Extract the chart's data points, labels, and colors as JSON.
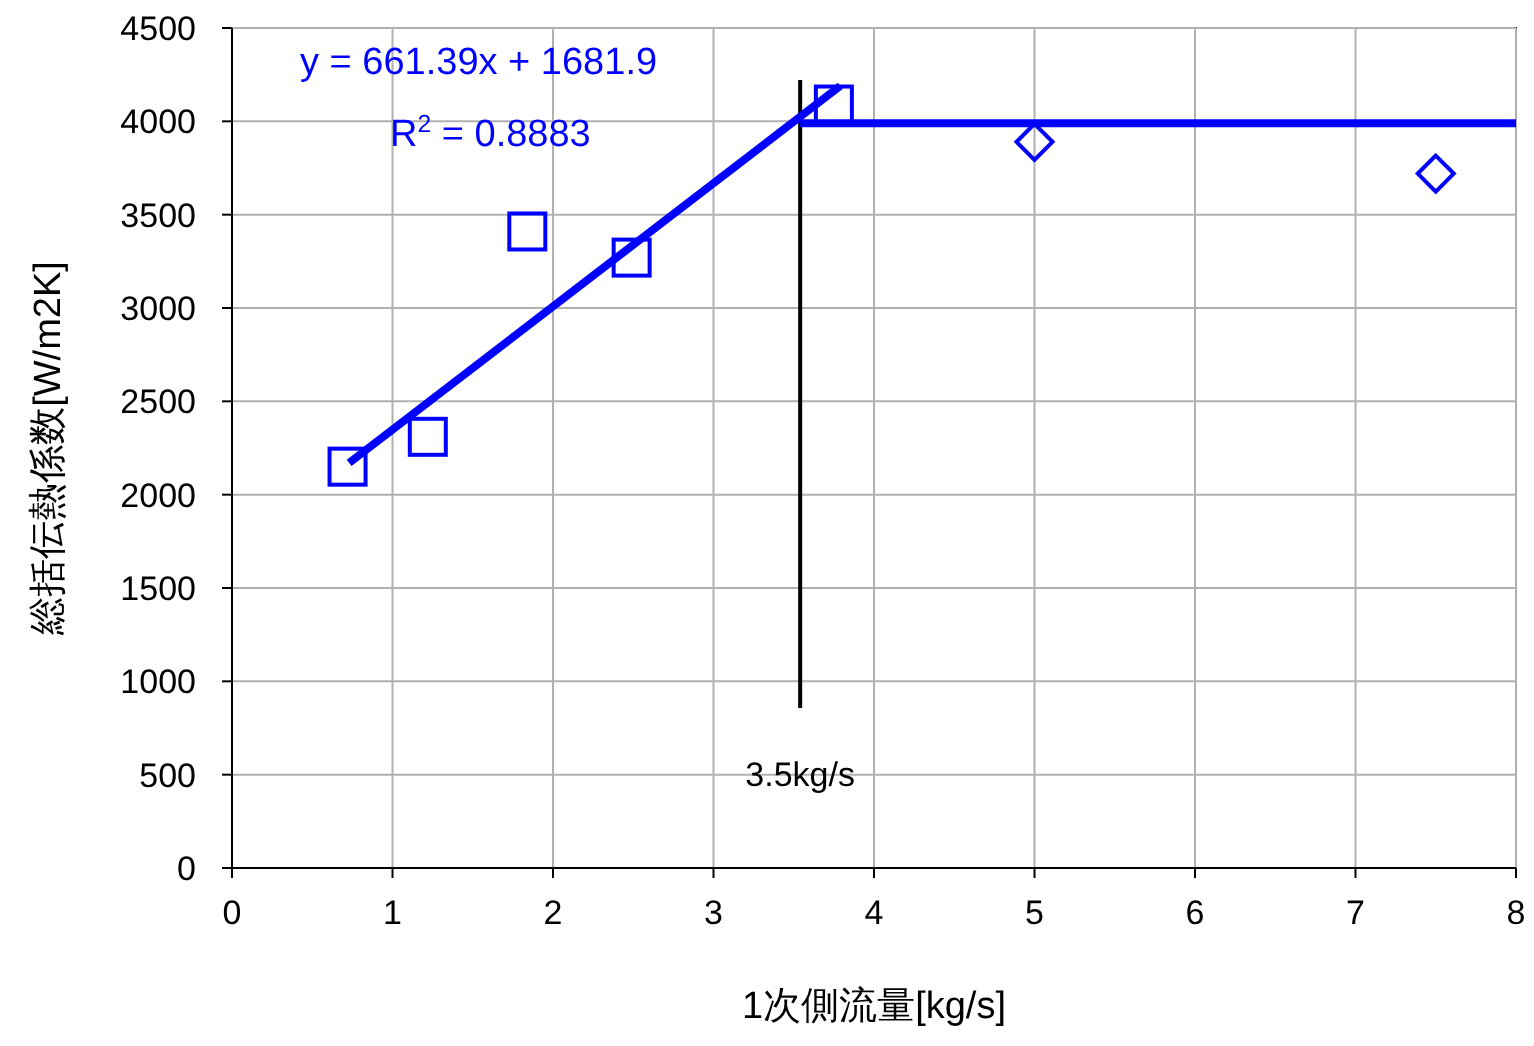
{
  "chart_data": {
    "type": "scatter",
    "xlabel": "1次側流量[kg/s]",
    "ylabel": "総括伝熱係数[W/m2K]",
    "xlim": [
      0,
      8
    ],
    "xticks": [
      0,
      1,
      2,
      3,
      4,
      5,
      6,
      7,
      8
    ],
    "ylim": [
      0,
      4500
    ],
    "yticks": [
      0,
      500,
      1000,
      1500,
      2000,
      2500,
      3000,
      3500,
      4000,
      4500
    ],
    "grid": true,
    "series": [
      {
        "marker": "square",
        "color": "#0000ff",
        "x": [
          0.72,
          1.22,
          1.84,
          2.49,
          3.75
        ],
        "values": [
          2150,
          2310,
          3410,
          3270,
          4090
        ]
      },
      {
        "marker": "diamond",
        "color": "#0000ff",
        "x": [
          5,
          7.5
        ],
        "values": [
          3890,
          3720
        ]
      },
      {
        "type": "line",
        "marker": "none",
        "color": "#0000ff",
        "x": [
          0.73,
          3.79
        ],
        "values": [
          2170,
          4190
        ]
      },
      {
        "type": "line",
        "marker": "none",
        "color": "#0000ff",
        "x": [
          3.54,
          8
        ],
        "values": [
          3990,
          3990
        ]
      }
    ],
    "ref_lines": [
      {
        "axis": "x",
        "value": 3.54,
        "label": "3.5kg/s",
        "color": "#000000"
      }
    ],
    "annotations": [
      "y = 661.39x + 1681.9",
      "R$^{2}$ = 0.8883"
    ]
  }
}
